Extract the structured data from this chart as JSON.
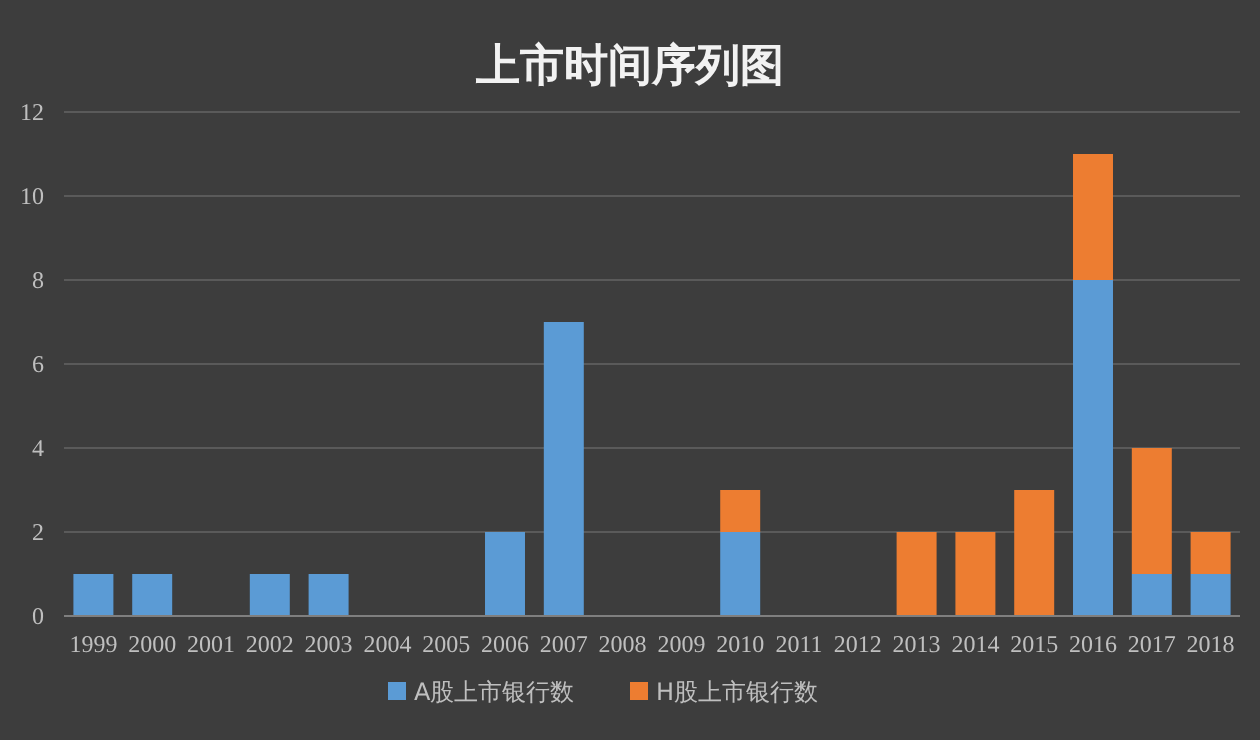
{
  "chart_data": {
    "type": "bar",
    "title": "上市时间序列图",
    "stacked": true,
    "grid": "y",
    "legend": "bottom",
    "categories": [
      "1999",
      "2000",
      "2001",
      "2002",
      "2003",
      "2004",
      "2005",
      "2006",
      "2007",
      "2008",
      "2009",
      "2010",
      "2011",
      "2012",
      "2013",
      "2014",
      "2015",
      "2016",
      "2017",
      "2018"
    ],
    "series": [
      {
        "name": "A股上市银行数",
        "color": "#5b9bd5",
        "values": [
          1,
          1,
          0,
          1,
          1,
          0,
          0,
          2,
          7,
          0,
          0,
          2,
          0,
          0,
          0,
          0,
          0,
          8,
          1,
          1
        ]
      },
      {
        "name": "H股上市银行数",
        "color": "#ed7d31",
        "values": [
          0,
          0,
          0,
          0,
          0,
          0,
          0,
          0,
          0,
          0,
          0,
          1,
          0,
          0,
          2,
          2,
          3,
          3,
          3,
          1
        ]
      }
    ],
    "ylim": [
      0,
      12
    ],
    "yticks": [
      0,
      2,
      4,
      6,
      8,
      10,
      12
    ]
  }
}
